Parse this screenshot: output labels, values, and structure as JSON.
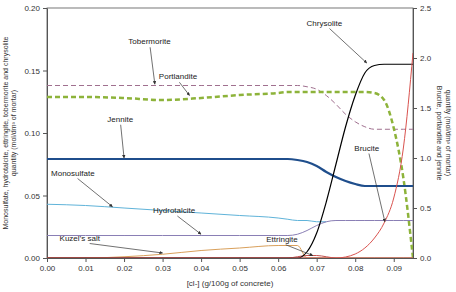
{
  "chart_data": {
    "type": "line",
    "xlabel": "[cl-] (g/100g of concrete)",
    "ylabel": [
      "Monosulfate, hydrotalcite, ettringite, tobermorite and chrysolite",
      "quantity (mol/dm³ of mortar)"
    ],
    "y2label": [
      "Brucite, portlandite and jennite",
      "quantity (mol/dm³ of mortar)"
    ],
    "xlim": [
      0,
      0.095
    ],
    "ylim": [
      0,
      0.2
    ],
    "y2lim": [
      0,
      2.5
    ],
    "xticks": [
      {
        "value": 0,
        "label": "0.00"
      },
      {
        "value": 0.01,
        "label": "0.01"
      },
      {
        "value": 0.02,
        "label": "0.02"
      },
      {
        "value": 0.03,
        "label": "0.03"
      },
      {
        "value": 0.04,
        "label": "0.04"
      },
      {
        "value": 0.05,
        "label": "0.05"
      },
      {
        "value": 0.06,
        "label": "0.06"
      },
      {
        "value": 0.07,
        "label": "0.07"
      },
      {
        "value": 0.08,
        "label": "0.08"
      },
      {
        "value": 0.09,
        "label": "0.09"
      }
    ],
    "yticks": [
      {
        "value": 0,
        "label": "0.00"
      },
      {
        "value": 0.05,
        "label": "0.05"
      },
      {
        "value": 0.1,
        "label": "0.10"
      },
      {
        "value": 0.15,
        "label": "0.15"
      },
      {
        "value": 0.2,
        "label": "0.20"
      }
    ],
    "y2ticks": [
      {
        "value": 0,
        "label": "0.0"
      },
      0.5,
      {
        "value": 1,
        "label": "1.0"
      },
      1.5,
      {
        "value": 2,
        "label": "2.0"
      },
      2.5
    ],
    "x": [
      0,
      0.01,
      0.02,
      0.03,
      0.04,
      0.05,
      0.06,
      0.0625,
      0.065,
      0.0675,
      0.07,
      0.0725,
      0.075,
      0.0775,
      0.08,
      0.0825,
      0.085,
      0.0875,
      0.09,
      0.0925,
      0.095
    ],
    "series": [
      {
        "name": "Tobermorite",
        "color": "#a0708f",
        "line_style": "dashed",
        "values": [
          0.138,
          0.138,
          0.138,
          0.138,
          0.138,
          0.138,
          0.138,
          0.138,
          0.138,
          0.137,
          0.135,
          0.13,
          0.123,
          0.115,
          0.109,
          0.105,
          0.103,
          0.103,
          0.103,
          0.103,
          0.103
        ]
      },
      {
        "name": "Portlandite",
        "color": "#8db33a",
        "line_style": "dashed",
        "axis": "y2",
        "values": [
          1.61,
          1.61,
          1.6,
          1.58,
          1.6,
          1.63,
          1.65,
          1.66,
          1.66,
          1.66,
          1.66,
          1.66,
          1.66,
          1.66,
          1.66,
          1.66,
          1.65,
          1.58,
          1.3,
          0.8,
          0
        ]
      },
      {
        "name": "Jennite",
        "color": "#1f4e8c",
        "line_style": "solid",
        "axis": "y2",
        "values": [
          0.99,
          0.99,
          0.99,
          0.99,
          0.99,
          0.99,
          0.99,
          0.99,
          0.98,
          0.96,
          0.92,
          0.86,
          0.81,
          0.77,
          0.74,
          0.72,
          0.72,
          0.72,
          0.72,
          0.72,
          0.72
        ]
      },
      {
        "name": "Monosulfate",
        "color": "#5fb3d9",
        "line_style": "solid",
        "values": [
          0.043,
          0.042,
          0.04,
          0.038,
          0.036,
          0.034,
          0.032,
          0.031,
          0.03,
          0.03,
          0.029,
          0.029,
          null,
          null,
          null,
          null,
          null,
          null,
          null,
          null,
          null
        ]
      },
      {
        "name": "Hydrotalcite",
        "color": "#8a7fb5",
        "line_style": "solid",
        "values": [
          0.018,
          0.018,
          0.018,
          0.018,
          0.018,
          0.018,
          0.018,
          0.018,
          0.019,
          0.022,
          0.026,
          0.029,
          0.03,
          0.03,
          0.03,
          0.03,
          0.03,
          0.03,
          0.03,
          0.03,
          0.03
        ]
      },
      {
        "name": "Kuzel’s salt",
        "color": "#d9a05b",
        "line_style": "solid",
        "values": [
          0,
          0,
          0.001,
          0.003,
          0.006,
          0.008,
          0.01,
          0.01,
          0.01,
          0,
          0,
          0,
          0,
          0,
          0,
          0,
          0,
          0,
          0,
          0,
          0
        ]
      },
      {
        "name": "Ettringite",
        "color": "#c0504d",
        "line_style": "solid",
        "values": [
          0,
          0,
          0,
          0,
          0,
          0,
          0,
          0,
          0.001,
          0.002,
          0.002,
          0.001,
          0,
          0,
          0,
          0,
          0,
          0,
          0,
          0,
          0
        ]
      },
      {
        "name": "Chrysolite",
        "color": "#000000",
        "line_style": "solid",
        "values": [
          0,
          0,
          0,
          0,
          0,
          0,
          0,
          0,
          0,
          0.005,
          0.02,
          0.045,
          0.075,
          0.105,
          0.13,
          0.148,
          0.154,
          0.155,
          0.155,
          0.155,
          0.155
        ]
      },
      {
        "name": "Brucite",
        "color": "#d9534f",
        "line_style": "solid",
        "axis": "y2",
        "values": [
          0,
          0,
          0,
          0,
          0,
          0,
          0,
          0,
          0,
          0,
          0,
          0,
          0,
          0.01,
          0.04,
          0.1,
          0.2,
          0.35,
          0.6,
          1.1,
          2.05
        ]
      }
    ]
  }
}
